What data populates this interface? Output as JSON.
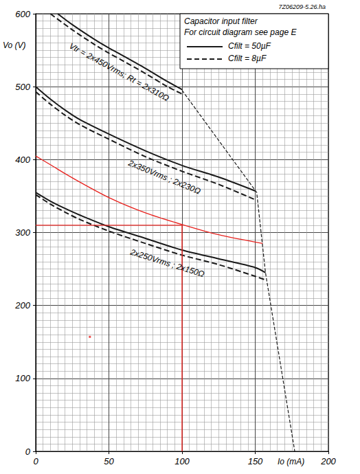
{
  "chart_data": {
    "type": "line",
    "subtitle": "7Z06209-5.26.ha",
    "x_label": "Io (mA)",
    "y_label": "Vo (V)",
    "legend_title": [
      "Capacitor input filter",
      "For circuit diagram see page E"
    ],
    "xlim": [
      0,
      200
    ],
    "xticks": [
      0,
      50,
      100,
      150,
      200
    ],
    "ylim": [
      0,
      600
    ],
    "yticks": [
      0,
      100,
      200,
      300,
      400,
      500,
      600
    ],
    "grid": true,
    "legend": "top-right",
    "annotations": [
      {
        "text": "Vtr = 2x450Vrms; Rt = 2x310Ω",
        "x": 57,
        "y": 520
      },
      {
        "text": "2x350Vrms ; 2x230Ω",
        "x": 88,
        "y": 376
      },
      {
        "text": "2x250Vrms ; 2x150Ω",
        "x": 90,
        "y": 258
      }
    ],
    "series": [
      {
        "name": "Cfilt = 50µF",
        "color": "#1a1a1a",
        "line_style": "solid",
        "x": [
          15,
          25,
          40,
          50,
          60,
          75,
          90,
          100
        ],
        "values": [
          600,
          585,
          565,
          553,
          542,
          525,
          507,
          496
        ]
      },
      {
        "name": "Cfilt = 8µF",
        "color": "#1a1a1a",
        "line_style": "dashed",
        "x": [
          10,
          25,
          40,
          50,
          60,
          75,
          90,
          100
        ],
        "values": [
          600,
          578,
          558,
          546,
          535,
          518,
          500,
          490
        ]
      },
      {
        "name": "Cfilt = 50µF",
        "color": "#1a1a1a",
        "line_style": "solid",
        "x": [
          0,
          10,
          20,
          30,
          50,
          75,
          100,
          125,
          150
        ],
        "values": [
          500,
          483,
          468,
          455,
          435,
          412,
          392,
          376,
          357
        ]
      },
      {
        "name": "Cfilt = 8µF",
        "color": "#1a1a1a",
        "line_style": "dashed",
        "x": [
          0,
          10,
          20,
          30,
          50,
          75,
          100,
          125,
          150
        ],
        "values": [
          493,
          476,
          461,
          448,
          428,
          404,
          384,
          366,
          345
        ]
      },
      {
        "name": "Cfilt = 50µF",
        "color": "#1a1a1a",
        "line_style": "solid",
        "x": [
          0,
          10,
          20,
          30,
          50,
          75,
          100,
          125,
          150,
          157
        ],
        "values": [
          355,
          343,
          333,
          324,
          308,
          292,
          276,
          264,
          252,
          245
        ]
      },
      {
        "name": "Cfilt = 8µF",
        "color": "#1a1a1a",
        "line_style": "dashed",
        "x": [
          0,
          10,
          20,
          30,
          50,
          75,
          100,
          125,
          150,
          157
        ],
        "values": [
          352,
          339,
          328,
          318,
          302,
          285,
          269,
          256,
          240,
          235
        ]
      },
      {
        "color": "#1a1a1a",
        "line_style": "dashed",
        "x": [
          100,
          151,
          157,
          177
        ],
        "values": [
          495,
          355,
          245,
          0
        ]
      },
      {
        "color": "#e8231f",
        "line_style": "solid",
        "x": [
          0,
          10,
          25,
          50,
          75,
          100,
          125,
          155
        ],
        "values": [
          405,
          393,
          375,
          348,
          327,
          311,
          297,
          285
        ]
      },
      {
        "color": "#e8231f",
        "line_style": "solid",
        "x": [
          0,
          100,
          100
        ],
        "values": [
          310,
          310,
          0
        ]
      },
      {
        "type": "scatter",
        "color": "#e8231f",
        "marker": "square",
        "x": [
          37
        ],
        "values": [
          157
        ]
      }
    ]
  }
}
